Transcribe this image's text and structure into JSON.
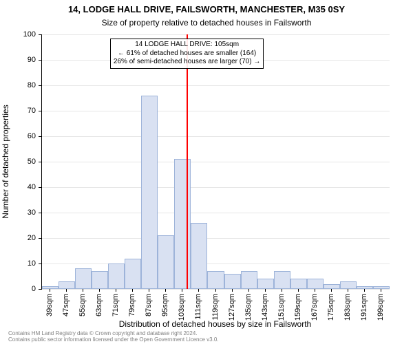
{
  "header": {
    "title_line1": "14, LODGE HALL DRIVE, FAILSWORTH, MANCHESTER, M35 0SY",
    "title_line2": "Size of property relative to detached houses in Failsworth",
    "title_fontsize": 13,
    "subtitle_fontsize": 12
  },
  "chart": {
    "type": "histogram",
    "background_color": "#ffffff",
    "grid_color": "#e6e6e6",
    "axis_color": "#000000",
    "bar_fill": "#d9e1f2",
    "bar_border": "#9db3d9",
    "reference_line_color": "#ff0000",
    "reference_value_sqm": 105,
    "ylabel": "Number of detached properties",
    "xlabel": "Distribution of detached houses by size in Failsworth",
    "axis_label_fontsize": 12,
    "tick_fontsize": 11,
    "ylim": [
      0,
      100
    ],
    "ytick_step": 10,
    "xtick_labels": [
      "39sqm",
      "47sqm",
      "55sqm",
      "63sqm",
      "71sqm",
      "79sqm",
      "87sqm",
      "95sqm",
      "103sqm",
      "111sqm",
      "119sqm",
      "127sqm",
      "135sqm",
      "143sqm",
      "151sqm",
      "159sqm",
      "167sqm",
      "175sqm",
      "183sqm",
      "191sqm",
      "199sqm"
    ],
    "bin_centers": [
      39,
      47,
      55,
      63,
      71,
      79,
      87,
      95,
      103,
      111,
      119,
      127,
      135,
      143,
      151,
      159,
      167,
      175,
      183,
      191,
      199
    ],
    "values": [
      1,
      3,
      8,
      7,
      10,
      12,
      76,
      21,
      51,
      26,
      7,
      6,
      7,
      4,
      7,
      4,
      4,
      2,
      3,
      1,
      1
    ],
    "x_range": [
      35,
      203
    ],
    "bar_width_units": 8
  },
  "annotation": {
    "line1": "14 LODGE HALL DRIVE: 105sqm",
    "line2": "← 61% of detached houses are smaller (164)",
    "line3": "26% of semi-detached houses are larger (70) →",
    "fontsize": 10
  },
  "footer": {
    "line1": "Contains HM Land Registry data © Crown copyright and database right 2024.",
    "line2": "Contains public sector information licensed under the Open Government Licence v3.0.",
    "fontsize": 8,
    "color": "#808080"
  }
}
